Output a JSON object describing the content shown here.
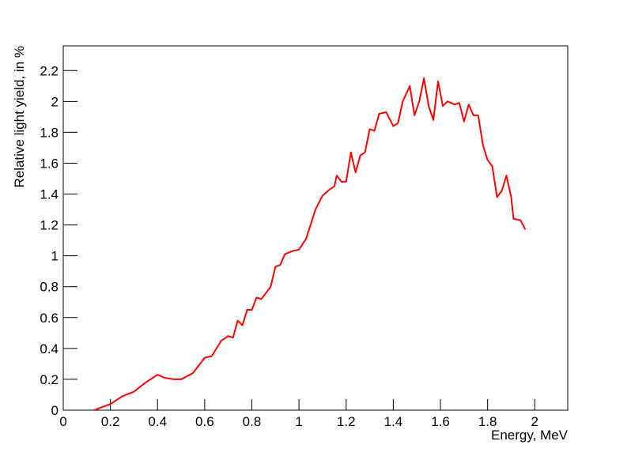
{
  "chart_data": {
    "type": "line",
    "xlabel": "Energy, MeV",
    "ylabel": "Relative light yield, in %",
    "x": [
      0.13,
      0.2,
      0.25,
      0.3,
      0.35,
      0.38,
      0.4,
      0.43,
      0.47,
      0.5,
      0.55,
      0.6,
      0.63,
      0.67,
      0.7,
      0.72,
      0.74,
      0.76,
      0.78,
      0.8,
      0.82,
      0.84,
      0.88,
      0.9,
      0.92,
      0.94,
      0.97,
      1.0,
      1.03,
      1.07,
      1.1,
      1.13,
      1.15,
      1.16,
      1.18,
      1.2,
      1.22,
      1.24,
      1.26,
      1.28,
      1.3,
      1.32,
      1.34,
      1.37,
      1.4,
      1.42,
      1.44,
      1.47,
      1.49,
      1.51,
      1.53,
      1.55,
      1.57,
      1.59,
      1.61,
      1.63,
      1.66,
      1.68,
      1.7,
      1.72,
      1.74,
      1.76,
      1.78,
      1.8,
      1.82,
      1.84,
      1.86,
      1.88,
      1.9,
      1.91,
      1.94,
      1.96
    ],
    "series": [
      {
        "color": "#ff0000",
        "values": [
          0,
          0.04,
          0.09,
          0.12,
          0.18,
          0.21,
          0.23,
          0.21,
          0.2,
          0.2,
          0.24,
          0.34,
          0.35,
          0.45,
          0.48,
          0.47,
          0.58,
          0.55,
          0.65,
          0.65,
          0.73,
          0.72,
          0.8,
          0.93,
          0.94,
          1.01,
          1.03,
          1.04,
          1.11,
          1.3,
          1.39,
          1.43,
          1.45,
          1.52,
          1.48,
          1.48,
          1.67,
          1.54,
          1.65,
          1.67,
          1.82,
          1.81,
          1.92,
          1.93,
          1.84,
          1.86,
          2.0,
          2.1,
          1.91,
          2.0,
          2.15,
          1.97,
          1.88,
          2.13,
          1.97,
          2.0,
          1.98,
          1.99,
          1.87,
          1.98,
          1.91,
          1.91,
          1.72,
          1.62,
          1.58,
          1.38,
          1.42,
          1.52,
          1.38,
          1.24,
          1.23,
          1.17
        ]
      }
    ],
    "xlim": [
      0,
      2.14
    ],
    "ylim": [
      0,
      2.36
    ],
    "xticks": [
      0,
      0.2,
      0.4,
      0.6,
      0.8,
      1,
      1.2,
      1.4,
      1.6,
      1.8,
      2
    ],
    "yticks": [
      0,
      0.2,
      0.4,
      0.6,
      0.8,
      1,
      1.2,
      1.4,
      1.6,
      1.8,
      2,
      2.2
    ]
  }
}
